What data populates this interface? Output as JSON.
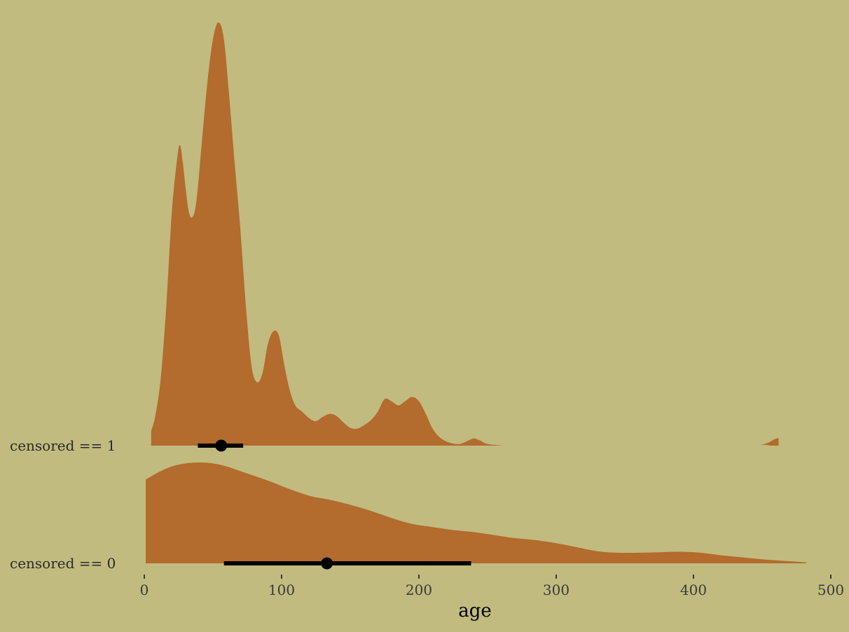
{
  "chart_data": {
    "type": "area",
    "subtype": "ridgeline-density-halfeye",
    "xlabel": "age",
    "xlim": [
      0,
      500
    ],
    "x_ticks": [
      0,
      100,
      200,
      300,
      400,
      500
    ],
    "grid": false,
    "legend": "none",
    "colors": {
      "background": "#C1BB7F",
      "density_fill": "#B36B2E",
      "interval": "#000000"
    },
    "series": [
      {
        "name": "censored == 1",
        "x_range": [
          5,
          462
        ],
        "density": [
          [
            5,
            0.035
          ],
          [
            8,
            0.07
          ],
          [
            12,
            0.16
          ],
          [
            16,
            0.33
          ],
          [
            20,
            0.55
          ],
          [
            24,
            0.68
          ],
          [
            26,
            0.71
          ],
          [
            28,
            0.67
          ],
          [
            32,
            0.56
          ],
          [
            35,
            0.54
          ],
          [
            38,
            0.58
          ],
          [
            42,
            0.72
          ],
          [
            46,
            0.86
          ],
          [
            50,
            0.96
          ],
          [
            54,
            1.0
          ],
          [
            58,
            0.96
          ],
          [
            62,
            0.82
          ],
          [
            66,
            0.66
          ],
          [
            70,
            0.51
          ],
          [
            74,
            0.33
          ],
          [
            78,
            0.19
          ],
          [
            82,
            0.15
          ],
          [
            86,
            0.17
          ],
          [
            90,
            0.24
          ],
          [
            94,
            0.27
          ],
          [
            98,
            0.26
          ],
          [
            102,
            0.19
          ],
          [
            106,
            0.13
          ],
          [
            110,
            0.095
          ],
          [
            115,
            0.08
          ],
          [
            120,
            0.065
          ],
          [
            125,
            0.058
          ],
          [
            130,
            0.068
          ],
          [
            135,
            0.075
          ],
          [
            140,
            0.07
          ],
          [
            145,
            0.055
          ],
          [
            150,
            0.042
          ],
          [
            155,
            0.04
          ],
          [
            160,
            0.048
          ],
          [
            165,
            0.06
          ],
          [
            170,
            0.08
          ],
          [
            175,
            0.11
          ],
          [
            180,
            0.105
          ],
          [
            185,
            0.095
          ],
          [
            190,
            0.105
          ],
          [
            195,
            0.115
          ],
          [
            200,
            0.105
          ],
          [
            205,
            0.075
          ],
          [
            210,
            0.04
          ],
          [
            215,
            0.02
          ],
          [
            220,
            0.01
          ],
          [
            225,
            0.005
          ],
          [
            230,
            0.004
          ],
          [
            236,
            0.012
          ],
          [
            240,
            0.017
          ],
          [
            244,
            0.013
          ],
          [
            250,
            0.004
          ],
          [
            260,
            0.001
          ],
          [
            270,
            0.0
          ],
          [
            440,
            0.0
          ],
          [
            450,
            0.003
          ],
          [
            455,
            0.008
          ],
          [
            459,
            0.015
          ],
          [
            462,
            0.018
          ]
        ],
        "point": 56,
        "interval": [
          39,
          72
        ]
      },
      {
        "name": "censored == 0",
        "x_range": [
          1,
          482
        ],
        "density": [
          [
            1,
            0.83
          ],
          [
            10,
            0.9
          ],
          [
            20,
            0.96
          ],
          [
            30,
            0.99
          ],
          [
            40,
            1.0
          ],
          [
            50,
            0.99
          ],
          [
            60,
            0.96
          ],
          [
            75,
            0.89
          ],
          [
            90,
            0.82
          ],
          [
            105,
            0.74
          ],
          [
            120,
            0.67
          ],
          [
            135,
            0.63
          ],
          [
            150,
            0.58
          ],
          [
            165,
            0.52
          ],
          [
            180,
            0.45
          ],
          [
            195,
            0.39
          ],
          [
            210,
            0.36
          ],
          [
            225,
            0.33
          ],
          [
            240,
            0.31
          ],
          [
            255,
            0.28
          ],
          [
            270,
            0.25
          ],
          [
            285,
            0.23
          ],
          [
            300,
            0.2
          ],
          [
            315,
            0.16
          ],
          [
            330,
            0.12
          ],
          [
            345,
            0.105
          ],
          [
            360,
            0.105
          ],
          [
            375,
            0.11
          ],
          [
            390,
            0.115
          ],
          [
            405,
            0.105
          ],
          [
            420,
            0.08
          ],
          [
            435,
            0.06
          ],
          [
            450,
            0.04
          ],
          [
            465,
            0.025
          ],
          [
            482,
            0.01
          ]
        ],
        "point": 133,
        "interval": [
          58,
          238
        ]
      }
    ]
  }
}
